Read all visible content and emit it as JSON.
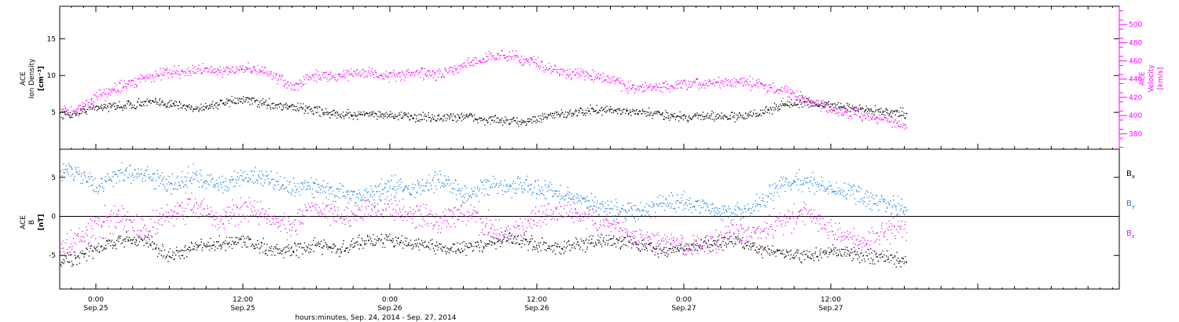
{
  "chart_data": [
    {
      "type": "scatter",
      "panel": "plasma",
      "ylabel_lines": [
        "ACE",
        "Ion Density",
        "[cm⁻³]"
      ],
      "y2label_lines": [
        "ACE",
        "Velocity",
        "[km/s]"
      ],
      "ylim": [
        0,
        19.4
      ],
      "yticks": [
        5,
        10,
        15
      ],
      "y2lim": [
        363,
        520
      ],
      "y2ticks": [
        380,
        400,
        420,
        440,
        460,
        480,
        500
      ],
      "series": [
        {
          "name": "density",
          "axis": "left",
          "color": "#000000",
          "points": [
            [
              -2,
              4.8
            ],
            [
              -1,
              5.3
            ],
            [
              0,
              5.8
            ],
            [
              2,
              5.9
            ],
            [
              4,
              6.4
            ],
            [
              6,
              6.3
            ],
            [
              8,
              5.6
            ],
            [
              10,
              6.2
            ],
            [
              12,
              6.8
            ],
            [
              14,
              6.2
            ],
            [
              16,
              5.8
            ],
            [
              18,
              5.4
            ],
            [
              20,
              4.6
            ],
            [
              22,
              4.9
            ],
            [
              24,
              4.7
            ],
            [
              26,
              4.4
            ],
            [
              28,
              4.3
            ],
            [
              30,
              4.5
            ],
            [
              32,
              4.0
            ],
            [
              34,
              3.8
            ],
            [
              36,
              4.1
            ],
            [
              38,
              4.9
            ],
            [
              40,
              5.2
            ],
            [
              42,
              5.4
            ],
            [
              44,
              5.0
            ],
            [
              46,
              4.8
            ],
            [
              48,
              4.4
            ],
            [
              50,
              4.6
            ],
            [
              52,
              4.4
            ],
            [
              54,
              4.8
            ],
            [
              56,
              6.1
            ],
            [
              58,
              6.4
            ],
            [
              60,
              5.9
            ],
            [
              62,
              5.6
            ],
            [
              64,
              5.2
            ],
            [
              66,
              4.8
            ]
          ]
        },
        {
          "name": "velocity",
          "axis": "right",
          "color": "#ff00ff",
          "points": [
            [
              -2,
              404
            ],
            [
              -1,
              412
            ],
            [
              0,
              420
            ],
            [
              2,
              432
            ],
            [
              4,
              442
            ],
            [
              6,
              448
            ],
            [
              8,
              450
            ],
            [
              10,
              450
            ],
            [
              12,
              452
            ],
            [
              14,
              448
            ],
            [
              16,
              432
            ],
            [
              18,
              445
            ],
            [
              20,
              445
            ],
            [
              22,
              448
            ],
            [
              24,
              444
            ],
            [
              26,
              447
            ],
            [
              28,
              445
            ],
            [
              30,
              455
            ],
            [
              32,
              465
            ],
            [
              34,
              466
            ],
            [
              36,
              458
            ],
            [
              38,
              448
            ],
            [
              40,
              445
            ],
            [
              42,
              440
            ],
            [
              44,
              430
            ],
            [
              46,
              432
            ],
            [
              48,
              434
            ],
            [
              50,
              436
            ],
            [
              52,
              438
            ],
            [
              54,
              435
            ],
            [
              56,
              428
            ],
            [
              58,
              418
            ],
            [
              60,
              408
            ],
            [
              62,
              402
            ],
            [
              64,
              398
            ],
            [
              66,
              390
            ]
          ]
        }
      ]
    },
    {
      "type": "scatter",
      "panel": "magnetic",
      "ylabel_lines": [
        "ACE",
        "B",
        "[nT]"
      ],
      "ylim": [
        -9.3,
        8.6
      ],
      "yticks": [
        -5,
        0,
        5
      ],
      "zero_line": true,
      "series": [
        {
          "name": "Bx",
          "color": "#000000",
          "points": [
            [
              -2,
              -5.5
            ],
            [
              0,
              -4
            ],
            [
              2,
              -3
            ],
            [
              4,
              -2.8
            ],
            [
              6,
              -5
            ],
            [
              8,
              -4
            ],
            [
              10,
              -3.5
            ],
            [
              12,
              -3
            ],
            [
              14,
              -4
            ],
            [
              16,
              -4.5
            ],
            [
              18,
              -3.5
            ],
            [
              20,
              -4.2
            ],
            [
              22,
              -3
            ],
            [
              24,
              -3
            ],
            [
              26,
              -3.4
            ],
            [
              28,
              -3.8
            ],
            [
              30,
              -4
            ],
            [
              32,
              -3.5
            ],
            [
              34,
              -2.8
            ],
            [
              36,
              -3.5
            ],
            [
              38,
              -4
            ],
            [
              40,
              -3.5
            ],
            [
              42,
              -3
            ],
            [
              44,
              -3.4
            ],
            [
              46,
              -4.4
            ],
            [
              48,
              -4
            ],
            [
              50,
              -3.5
            ],
            [
              52,
              -3
            ],
            [
              54,
              -4
            ],
            [
              56,
              -4.5
            ],
            [
              58,
              -5
            ],
            [
              60,
              -4.6
            ],
            [
              62,
              -4.8
            ],
            [
              64,
              -5.2
            ],
            [
              66,
              -5.5
            ]
          ]
        },
        {
          "name": "By",
          "color": "#1a82e0",
          "points": [
            [
              -2,
              6
            ],
            [
              0,
              4
            ],
            [
              2,
              5.5
            ],
            [
              4,
              5.4
            ],
            [
              6,
              4
            ],
            [
              8,
              5.2
            ],
            [
              10,
              4
            ],
            [
              12,
              5
            ],
            [
              14,
              4.8
            ],
            [
              16,
              3.4
            ],
            [
              18,
              4
            ],
            [
              20,
              3
            ],
            [
              22,
              2.8
            ],
            [
              24,
              4
            ],
            [
              26,
              3.4
            ],
            [
              28,
              4.8
            ],
            [
              30,
              3
            ],
            [
              32,
              3.8
            ],
            [
              34,
              4
            ],
            [
              36,
              3.6
            ],
            [
              38,
              3
            ],
            [
              40,
              2
            ],
            [
              42,
              1
            ],
            [
              44,
              0.6
            ],
            [
              46,
              1.6
            ],
            [
              48,
              2
            ],
            [
              50,
              1.2
            ],
            [
              52,
              0.2
            ],
            [
              54,
              1.4
            ],
            [
              56,
              4.3
            ],
            [
              58,
              4.6
            ],
            [
              60,
              3.8
            ],
            [
              62,
              3
            ],
            [
              64,
              2
            ],
            [
              66,
              1
            ]
          ]
        },
        {
          "name": "Bz",
          "color": "#e61ee6",
          "points": [
            [
              -2,
              -3.5
            ],
            [
              0,
              -1
            ],
            [
              2,
              0
            ],
            [
              4,
              -2
            ],
            [
              6,
              0.5
            ],
            [
              8,
              1.4
            ],
            [
              10,
              -0.5
            ],
            [
              12,
              1
            ],
            [
              14,
              0
            ],
            [
              16,
              -1.5
            ],
            [
              18,
              1.5
            ],
            [
              20,
              0
            ],
            [
              22,
              1
            ],
            [
              24,
              1.6
            ],
            [
              26,
              0.3
            ],
            [
              28,
              -0.5
            ],
            [
              30,
              0.8
            ],
            [
              32,
              -1.2
            ],
            [
              34,
              -2.5
            ],
            [
              36,
              0
            ],
            [
              38,
              1
            ],
            [
              40,
              0
            ],
            [
              42,
              -1.5
            ],
            [
              44,
              -2.5
            ],
            [
              46,
              -3
            ],
            [
              48,
              -4
            ],
            [
              50,
              -3.5
            ],
            [
              52,
              -1.8
            ],
            [
              54,
              -2
            ],
            [
              56,
              -0.5
            ],
            [
              58,
              0.4
            ],
            [
              60,
              -1.8
            ],
            [
              62,
              -3.3
            ],
            [
              64,
              -2.3
            ],
            [
              66,
              -1
            ]
          ]
        }
      ],
      "legend": [
        {
          "base": "B",
          "sub": "x",
          "color": "#000000"
        },
        {
          "base": "B",
          "sub": "y",
          "color": "#1a82e0"
        },
        {
          "base": "B",
          "sub": "z",
          "color": "#e61ee6"
        }
      ]
    }
  ],
  "x_axis": {
    "range_hours": [
      -2.95,
      83.55
    ],
    "data_end_hours": 66.2,
    "ticks": [
      {
        "hours": 0,
        "time": "0:00",
        "date": "Sep.25"
      },
      {
        "hours": 12,
        "time": "12:00",
        "date": "Sep.25"
      },
      {
        "hours": 24,
        "time": "0:00",
        "date": "Sep.26"
      },
      {
        "hours": 36,
        "time": "12:00",
        "date": "Sep.26"
      },
      {
        "hours": 48,
        "time": "0:00",
        "date": "Sep.27"
      },
      {
        "hours": 60,
        "time": "12:00",
        "date": "Sep.27"
      }
    ],
    "label": "hours:minutes, Sep. 24, 2014 - Sep. 27, 2014"
  }
}
